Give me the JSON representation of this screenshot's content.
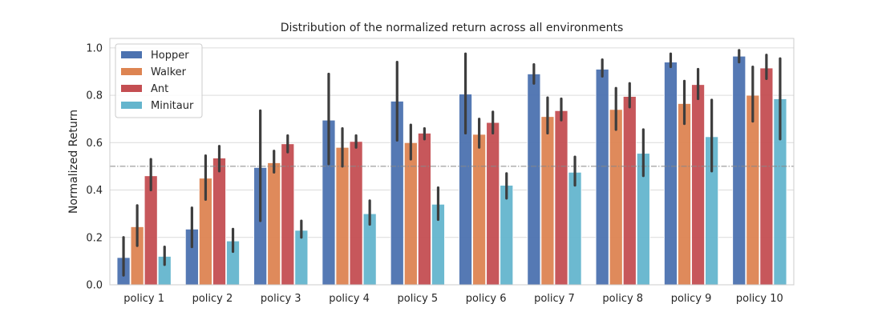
{
  "chart_data": {
    "type": "bar",
    "title": "Distribution of the normalized return across all environments",
    "xlabel": "",
    "ylabel": "Normalized Return",
    "categories": [
      "policy 1",
      "policy 2",
      "policy 3",
      "policy 4",
      "policy 5",
      "policy 6",
      "policy 7",
      "policy 8",
      "policy 9",
      "policy 10"
    ],
    "ylim": [
      0,
      1.04
    ],
    "yticks": [
      "0.0",
      "0.2",
      "0.4",
      "0.6",
      "0.8",
      "1.0"
    ],
    "grid": true,
    "legend_position": "top-left",
    "reference_line": 0.5,
    "series": [
      {
        "name": "Hopper",
        "color": "#4c72b0",
        "values": [
          0.115,
          0.235,
          0.495,
          0.695,
          0.775,
          0.805,
          0.89,
          0.91,
          0.94,
          0.965
        ],
        "ci_low": [
          0.04,
          0.16,
          0.27,
          0.51,
          0.61,
          0.64,
          0.85,
          0.88,
          0.92,
          0.94
        ],
        "ci_high": [
          0.2,
          0.325,
          0.735,
          0.89,
          0.94,
          0.975,
          0.93,
          0.95,
          0.975,
          0.99
        ]
      },
      {
        "name": "Walker",
        "color": "#dd8452",
        "values": [
          0.245,
          0.45,
          0.515,
          0.58,
          0.6,
          0.635,
          0.71,
          0.74,
          0.765,
          0.8
        ],
        "ci_low": [
          0.165,
          0.36,
          0.475,
          0.5,
          0.53,
          0.58,
          0.64,
          0.655,
          0.68,
          0.69
        ],
        "ci_high": [
          0.335,
          0.545,
          0.565,
          0.66,
          0.675,
          0.7,
          0.79,
          0.83,
          0.86,
          0.92
        ]
      },
      {
        "name": "Ant",
        "color": "#c44e52",
        "values": [
          0.46,
          0.535,
          0.595,
          0.605,
          0.64,
          0.685,
          0.735,
          0.795,
          0.845,
          0.915
        ],
        "ci_low": [
          0.4,
          0.48,
          0.56,
          0.58,
          0.615,
          0.64,
          0.695,
          0.75,
          0.785,
          0.87
        ],
        "ci_high": [
          0.53,
          0.585,
          0.63,
          0.63,
          0.66,
          0.73,
          0.785,
          0.85,
          0.91,
          0.97
        ]
      },
      {
        "name": "Minitaur",
        "color": "#64b5cd",
        "values": [
          0.12,
          0.185,
          0.23,
          0.3,
          0.34,
          0.42,
          0.475,
          0.555,
          0.625,
          0.785
        ],
        "ci_low": [
          0.085,
          0.14,
          0.2,
          0.255,
          0.275,
          0.365,
          0.42,
          0.46,
          0.48,
          0.615
        ],
        "ci_high": [
          0.16,
          0.235,
          0.27,
          0.355,
          0.41,
          0.47,
          0.54,
          0.655,
          0.78,
          0.955
        ]
      }
    ]
  }
}
